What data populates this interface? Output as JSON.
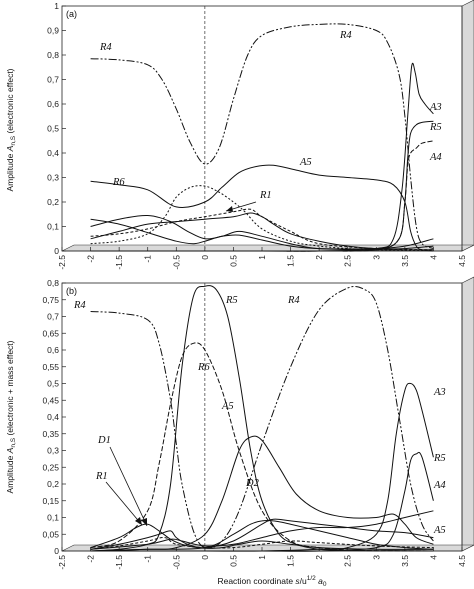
{
  "chart_data": [
    {
      "type": "line",
      "panel_label": "(a)",
      "ylabel": "Amplitude A_{n,S} (electronic effect)",
      "ylabel_parts": {
        "pre": "Amplitude ",
        "sym": "A",
        "sub": "n,S",
        "post": " (electronic effect)"
      },
      "xlabel": "",
      "xlim": [
        -2.5,
        4.5
      ],
      "ylim": [
        0,
        1
      ],
      "xticks": [
        "-2.5",
        "-2",
        "-1.5",
        "-1",
        "-0.5",
        "0",
        "0.5",
        "1",
        "1.5",
        "2",
        "2.5",
        "3",
        "3.5",
        "4",
        "4.5"
      ],
      "yticks": [
        "0",
        "0,1",
        "0,2",
        "0,3",
        "0,4",
        "0,5",
        "0,6",
        "0,7",
        "0,8",
        "0,9",
        "1"
      ],
      "vline_x": 0,
      "series": [
        {
          "name": "R4",
          "dash": "8,2,2,2,2,2",
          "x": [
            -2,
            -1.5,
            -1,
            -0.75,
            -0.5,
            -0.25,
            0,
            0.25,
            0.5,
            0.75,
            1,
            1.5,
            2,
            2.5,
            3,
            3.2,
            3.4,
            3.5,
            3.6,
            3.7,
            3.8,
            4
          ],
          "y": [
            0.785,
            0.78,
            0.76,
            0.7,
            0.58,
            0.44,
            0.355,
            0.42,
            0.62,
            0.8,
            0.88,
            0.915,
            0.925,
            0.925,
            0.9,
            0.85,
            0.72,
            0.55,
            0.3,
            0.1,
            0.03,
            0.01
          ]
        },
        {
          "name": "A3",
          "dash": "",
          "x": [
            -2,
            -1,
            0,
            1,
            2,
            3,
            3.3,
            3.45,
            3.55,
            3.62,
            3.68,
            3.75,
            3.85,
            4
          ],
          "y": [
            0,
            0,
            0,
            0,
            0,
            0.01,
            0.05,
            0.25,
            0.55,
            0.755,
            0.73,
            0.64,
            0.6,
            0.56
          ]
        },
        {
          "name": "R5",
          "dash": "",
          "x": [
            -2,
            -1,
            0,
            1,
            2,
            3,
            3.4,
            3.5,
            3.55,
            3.6,
            3.7,
            3.8,
            4
          ],
          "y": [
            0,
            0,
            0,
            0,
            0,
            0.005,
            0.05,
            0.2,
            0.38,
            0.48,
            0.515,
            0.525,
            0.53
          ]
        },
        {
          "name": "A4",
          "dash": "5,2",
          "x": [
            -2,
            -1,
            0,
            1,
            2,
            3,
            3.4,
            3.5,
            3.55,
            3.6,
            3.7,
            3.8,
            4
          ],
          "y": [
            0,
            0,
            0,
            0,
            0,
            0.005,
            0.05,
            0.2,
            0.35,
            0.4,
            0.42,
            0.44,
            0.45
          ]
        },
        {
          "name": "A5",
          "dash": "",
          "x": [
            -2,
            -1.5,
            -1,
            -0.5,
            0,
            0.3,
            0.6,
            0.9,
            1.2,
            1.6,
            2,
            2.5,
            3,
            3.3,
            3.5,
            3.6,
            3.7,
            3.8,
            4
          ],
          "y": [
            0.285,
            0.27,
            0.25,
            0.18,
            0.2,
            0.26,
            0.32,
            0.345,
            0.35,
            0.33,
            0.31,
            0.3,
            0.29,
            0.27,
            0.2,
            0.08,
            0.02,
            0.005,
            0
          ]
        },
        {
          "name": "R6",
          "dash": "2,2",
          "x": [
            -2,
            -1.5,
            -1,
            -0.7,
            -0.5,
            -0.25,
            0,
            0.25,
            0.5,
            0.7,
            1,
            1.5,
            2,
            2.5,
            3,
            3.5,
            4
          ],
          "y": [
            0.03,
            0.04,
            0.07,
            0.14,
            0.22,
            0.26,
            0.265,
            0.24,
            0.2,
            0.16,
            0.09,
            0.04,
            0.02,
            0.01,
            0.005,
            0.003,
            0.002
          ]
        },
        {
          "name": "R1",
          "dash": "",
          "x": [
            -2,
            -1.5,
            -1,
            -0.5,
            0,
            0.5,
            0.8,
            1,
            1.2,
            1.5,
            2,
            2.5,
            3,
            3.5,
            4
          ],
          "y": [
            0.05,
            0.08,
            0.11,
            0.12,
            0.13,
            0.14,
            0.155,
            0.14,
            0.11,
            0.07,
            0.04,
            0.02,
            0.01,
            0.01,
            0.02
          ]
        },
        {
          "name": "",
          "dash": "",
          "x": [
            -2,
            -1.5,
            -1,
            -0.5,
            -0.2,
            0,
            0.3,
            0.6,
            1,
            1.5,
            2,
            3,
            3.5,
            4
          ],
          "y": [
            0.13,
            0.11,
            0.075,
            0.04,
            0.03,
            0.04,
            0.06,
            0.065,
            0.045,
            0.02,
            0.01,
            0.01,
            0.02,
            0.05
          ]
        },
        {
          "name": "",
          "dash": "",
          "x": [
            -2,
            -1.5,
            -1,
            -0.6,
            -0.3,
            0,
            0.3,
            0.6,
            1,
            1.5,
            2,
            3,
            4
          ],
          "y": [
            0.1,
            0.13,
            0.145,
            0.12,
            0.08,
            0.05,
            0.06,
            0.08,
            0.06,
            0.03,
            0.01,
            0.005,
            0.005
          ]
        },
        {
          "name": "",
          "dash": "3,2",
          "x": [
            -2,
            -1.5,
            -1,
            -0.5,
            0,
            0.5,
            0.8,
            1,
            1.5,
            2,
            3,
            4
          ],
          "y": [
            0.06,
            0.07,
            0.09,
            0.12,
            0.14,
            0.16,
            0.17,
            0.14,
            0.08,
            0.03,
            0.01,
            0.005
          ]
        }
      ],
      "curve_labels": [
        "R4",
        "R4",
        "A3",
        "R5",
        "A4",
        "A5",
        "R6",
        "R1"
      ]
    },
    {
      "type": "line",
      "panel_label": "(b)",
      "ylabel": "Amplitude A_{n,S} (electronic + mass effect)",
      "ylabel_parts": {
        "pre": "Amplitude ",
        "sym": "A",
        "sub": "n,S",
        "post": " (electronic + mass effect)"
      },
      "xlabel": "Reaction coordinate s/u^{1/2} a_0",
      "xlabel_parts": {
        "pre": "Reaction coordinate ",
        "sym": "s",
        "mid": "/u",
        "sup": "1/2",
        "sym2": " a",
        "sub": "0"
      },
      "xlim": [
        -2.5,
        4.5
      ],
      "ylim": [
        0,
        0.8
      ],
      "xticks": [
        "-2.5",
        "-2",
        "-1.5",
        "-1",
        "-0.5",
        "0",
        "0.5",
        "1",
        "1.5",
        "2",
        "2.5",
        "3",
        "3.5",
        "4",
        "4.5"
      ],
      "yticks": [
        "0",
        "0,05",
        "0,1",
        "0,15",
        "0,2",
        "0,25",
        "0,3",
        "0,35",
        "0,4",
        "0,45",
        "0,5",
        "0,55",
        "0,6",
        "0,65",
        "0,7",
        "0,75",
        "0,8"
      ],
      "vline_x": 0,
      "series": [
        {
          "name": "R4",
          "dash": "8,2,2,2,2,2",
          "x": [
            -2,
            -1.5,
            -1,
            -0.8,
            -0.6,
            -0.5,
            -0.4,
            -0.2,
            0,
            0.3,
            0.6,
            1,
            1.5,
            2,
            2.5,
            2.8,
            3,
            3.2,
            3.4,
            3.6,
            3.8,
            4
          ],
          "y": [
            0.715,
            0.71,
            0.69,
            0.62,
            0.45,
            0.32,
            0.2,
            0.06,
            0.01,
            0.03,
            0.12,
            0.32,
            0.55,
            0.72,
            0.785,
            0.78,
            0.74,
            0.6,
            0.4,
            0.2,
            0.08,
            0.03
          ]
        },
        {
          "name": "R5",
          "dash": "",
          "x": [
            -2,
            -1.5,
            -1,
            -0.8,
            -0.6,
            -0.4,
            -0.2,
            0,
            0.2,
            0.4,
            0.6,
            0.8,
            1,
            1.3,
            1.6,
            2,
            2.5,
            3,
            3.5,
            4
          ],
          "y": [
            0,
            0.005,
            0.02,
            0.05,
            0.2,
            0.55,
            0.76,
            0.79,
            0.78,
            0.7,
            0.52,
            0.3,
            0.15,
            0.05,
            0.02,
            0.005,
            0.002,
            0.001,
            0.001,
            0
          ]
        },
        {
          "name": "R6",
          "dash": "5,2",
          "x": [
            -2,
            -1.5,
            -1,
            -0.8,
            -0.6,
            -0.4,
            -0.2,
            0,
            0.3,
            0.6,
            1,
            1.5,
            2,
            2.5,
            3,
            4
          ],
          "y": [
            0.01,
            0.03,
            0.12,
            0.26,
            0.44,
            0.58,
            0.62,
            0.6,
            0.48,
            0.3,
            0.12,
            0.03,
            0.01,
            0.003,
            0.001,
            0
          ]
        },
        {
          "name": "A5",
          "dash": "",
          "x": [
            -2,
            -1,
            -0.5,
            0,
            0.3,
            0.6,
            0.8,
            1,
            1.3,
            1.6,
            2,
            2.5,
            3,
            3.3,
            3.5,
            3.7,
            4
          ],
          "y": [
            0,
            0.005,
            0.01,
            0.05,
            0.15,
            0.3,
            0.34,
            0.33,
            0.25,
            0.17,
            0.12,
            0.1,
            0.1,
            0.11,
            0.08,
            0.04,
            0.02
          ]
        },
        {
          "name": "A3",
          "dash": "",
          "x": [
            -2,
            -1,
            0,
            1,
            2,
            2.5,
            3,
            3.2,
            3.35,
            3.5,
            3.6,
            3.7,
            3.8,
            4
          ],
          "y": [
            0,
            0,
            0,
            0,
            0.005,
            0.01,
            0.05,
            0.15,
            0.35,
            0.48,
            0.5,
            0.48,
            0.42,
            0.28
          ]
        },
        {
          "name": "A4",
          "dash": "",
          "x": [
            -2,
            -1,
            0,
            1,
            2,
            3,
            3.3,
            3.5,
            3.6,
            3.7,
            3.8,
            4
          ],
          "y": [
            0,
            0,
            0,
            0,
            0,
            0.01,
            0.05,
            0.18,
            0.27,
            0.29,
            0.28,
            0.15
          ]
        },
        {
          "name": "D1",
          "dash": "",
          "x": [
            -2,
            -1.5,
            -1.2,
            -1,
            -0.8,
            -0.6,
            -0.4,
            -0.2,
            0,
            0.3,
            0.6,
            1,
            1.5,
            2,
            3,
            4
          ],
          "y": [
            0.01,
            0.04,
            0.07,
            0.08,
            0.06,
            0.035,
            0.02,
            0.012,
            0.008,
            0.01,
            0.02,
            0.03,
            0.02,
            0.01,
            0.005,
            0.005
          ]
        },
        {
          "name": "D2",
          "dash": "",
          "x": [
            -2,
            -1,
            0,
            0.5,
            0.8,
            1,
            1.2,
            1.5,
            2,
            2.5,
            3,
            3.5,
            4
          ],
          "y": [
            0,
            0.005,
            0.01,
            0.05,
            0.08,
            0.09,
            0.09,
            0.08,
            0.06,
            0.04,
            0.02,
            0.01,
            0.005
          ]
        },
        {
          "name": "R1",
          "dash": "",
          "x": [
            -2,
            -1.5,
            -1,
            -0.8,
            -0.6,
            -0.5,
            -0.3,
            0,
            0.5,
            1,
            1.2,
            1.5,
            2,
            2.5,
            3,
            3.5,
            4
          ],
          "y": [
            0.005,
            0.02,
            0.04,
            0.05,
            0.06,
            0.04,
            0.02,
            0.01,
            0.03,
            0.08,
            0.095,
            0.09,
            0.08,
            0.07,
            0.06,
            0.055,
            0.04
          ]
        },
        {
          "name": "",
          "dash": "",
          "x": [
            -2,
            -1,
            -0.6,
            -0.4,
            0,
            0.5,
            1,
            1.5,
            2,
            2.5,
            3,
            3.5,
            4
          ],
          "y": [
            0.005,
            0.02,
            0.035,
            0.03,
            0.015,
            0.02,
            0.04,
            0.06,
            0.07,
            0.07,
            0.08,
            0.1,
            0.12
          ]
        },
        {
          "name": "",
          "dash": "3,2",
          "x": [
            -2,
            -1.5,
            -1,
            -0.7,
            -0.5,
            0,
            0.5,
            1,
            1.5,
            2,
            3,
            4
          ],
          "y": [
            0.005,
            0.015,
            0.03,
            0.04,
            0.02,
            0.01,
            0.01,
            0.02,
            0.03,
            0.025,
            0.015,
            0.01
          ]
        }
      ],
      "curve_labels": [
        "R4",
        "R5",
        "R6",
        "R4",
        "A3",
        "A5",
        "R5",
        "A4",
        "D1",
        "R1",
        "D2",
        "A5"
      ]
    }
  ]
}
